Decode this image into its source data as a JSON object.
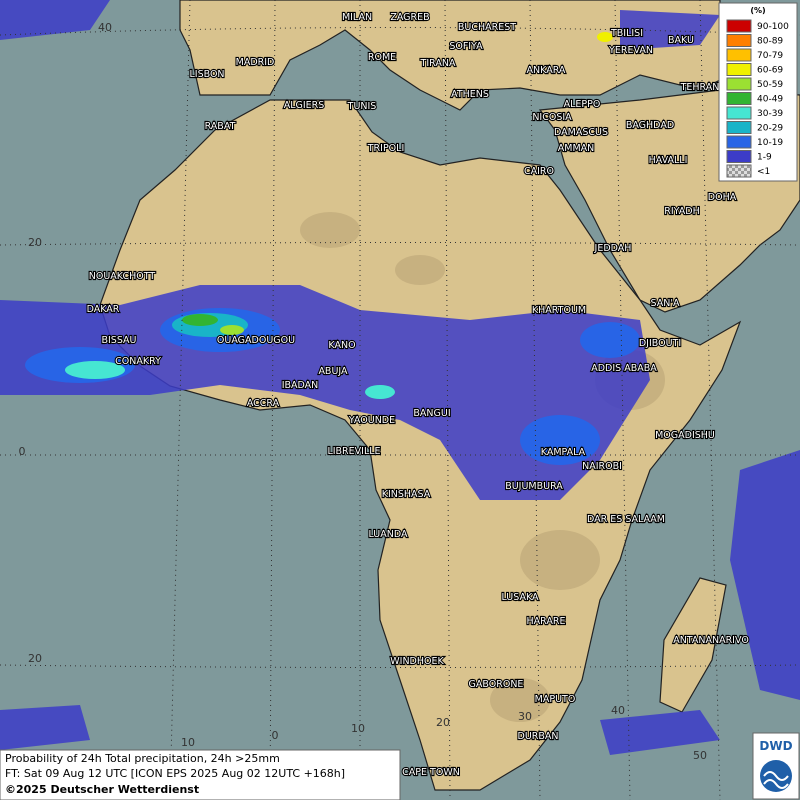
{
  "map": {
    "grid_labels": [
      "40",
      "20",
      "0",
      "20",
      "10",
      "0",
      "10",
      "20",
      "30",
      "40",
      "50"
    ],
    "cities": [
      "MILAN",
      "ZAGREB",
      "BUCHAREST",
      "SOFIYA",
      "ROME",
      "TIRANA",
      "ANKARA",
      "TBILISI",
      "YEREVAN",
      "BAKU",
      "TEHRAN",
      "LISBON",
      "MADRID",
      "ALGIERS",
      "TUNIS",
      "ATHENS",
      "NICOSIA",
      "ALEPPO",
      "RABAT",
      "DAMASCUS",
      "BAGHDAD",
      "AMMAN",
      "TRIPOLI",
      "CAIRO",
      "HAVALLI",
      "DOHA",
      "RIYADH",
      "JEDDAH",
      "NOUAKCHOTT",
      "SAN'A",
      "DAKAR",
      "KHARTOUM",
      "BISSAU",
      "OUAGADOUGOU",
      "DJIBOUTI",
      "KANO",
      "CONAKRY",
      "ABUJA",
      "ADDIS ABABA",
      "IBADAN",
      "ACCRA",
      "BANGUI",
      "YAOUNDE",
      "MOGADISHU",
      "LIBREVILLE",
      "KAMPALA",
      "NAIROBI",
      "KINSHASA",
      "BUJUMBURA",
      "DAR ES SALAAM",
      "LUANDA",
      "LUSAKA",
      "HARARE",
      "ANTANANARIVO",
      "WINDHOEK",
      "GABORONE",
      "MAPUTO",
      "DURBAN",
      "CAPE TOWN"
    ]
  },
  "legend": {
    "title": "(%)",
    "items": [
      {
        "label": "90-100",
        "color": "#cc0000"
      },
      {
        "label": "80-89",
        "color": "#ff7f00"
      },
      {
        "label": "70-79",
        "color": "#ffc000"
      },
      {
        "label": "60-69",
        "color": "#f0f000"
      },
      {
        "label": "50-59",
        "color": "#9be032"
      },
      {
        "label": "40-49",
        "color": "#32b432"
      },
      {
        "label": "30-39",
        "color": "#46e6d2"
      },
      {
        "label": "20-29",
        "color": "#19b4c8"
      },
      {
        "label": "10-19",
        "color": "#2864e6"
      },
      {
        "label": "1-9",
        "color": "#3c3cc8"
      },
      {
        "label": "<1",
        "color": "checker"
      }
    ]
  },
  "caption": {
    "line1": "Probability of 24h Total precipitation, 24h >25mm",
    "line2": "FT: Sat 09 Aug 12 UTC [ICON EPS 2025 Aug 02 12UTC +168h]",
    "copyright": "©2025 Deutscher Wetterdienst"
  },
  "logo": "DWD"
}
